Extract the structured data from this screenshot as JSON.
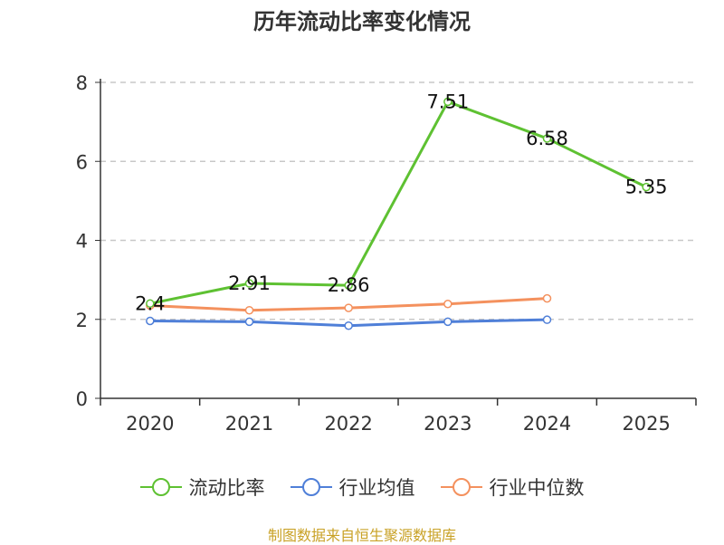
{
  "chart_data": {
    "type": "line",
    "title": "历年流动比率变化情况",
    "categories": [
      "2020",
      "2021",
      "2022",
      "2023",
      "2024",
      "2025"
    ],
    "ylim": [
      0,
      8
    ],
    "yticks": [
      "0",
      "2",
      "4",
      "6",
      "8"
    ],
    "ytick_values": [
      0,
      2,
      4,
      6,
      8
    ],
    "grid": true,
    "legend_position": "bottom",
    "series": [
      {
        "name": "流动比率",
        "color": "#5ec132",
        "values": [
          2.4,
          2.91,
          2.86,
          7.51,
          6.58,
          5.35
        ],
        "labels": [
          "2.4",
          "2.91",
          "2.86",
          "7.51",
          "6.58",
          "5.35"
        ]
      },
      {
        "name": "行业均值",
        "color": "#4f7fd8",
        "values": [
          1.96,
          1.94,
          1.84,
          1.94,
          1.99,
          null
        ]
      },
      {
        "name": "行业中位数",
        "color": "#f4915e",
        "values": [
          2.35,
          2.23,
          2.29,
          2.39,
          2.53,
          null
        ]
      }
    ]
  },
  "source": "制图数据来自恒生聚源数据库"
}
